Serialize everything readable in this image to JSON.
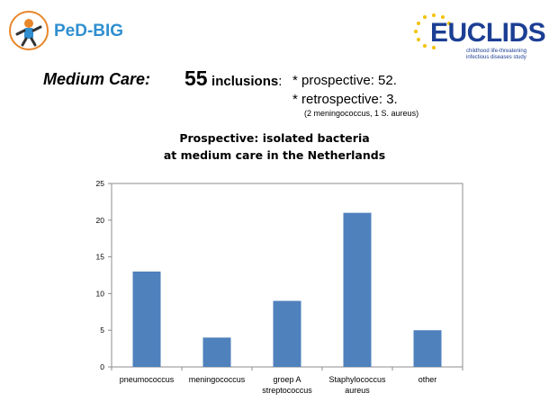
{
  "logos": {
    "pedbig_text": "PeD-BIG",
    "euclids_text": "EUCLIDS",
    "euclids_subtitle": "childhood life-threatening infectious diseases study"
  },
  "header": {
    "medium_care_label": "Medium Care:",
    "inclusions_count": "55",
    "inclusions_label": "inclusions",
    "prospective": "* prospective: 52.",
    "retrospective": "* retrospective: 3.",
    "retrospective_note": "(2 meningococcus, 1 S. aureus)"
  },
  "chart_data": {
    "type": "bar",
    "title": "Prospective: isolated bacteria at medium care in the Netherlands",
    "title_lines": [
      "Prospective: isolated bacteria",
      "at medium care in the Netherlands"
    ],
    "categories": [
      [
        "pneumococcus"
      ],
      [
        "meningococcus"
      ],
      [
        "groep A",
        "streptococcus"
      ],
      [
        "Staphylococcus",
        "aureus"
      ],
      [
        "other"
      ]
    ],
    "values": [
      13,
      4,
      9,
      21,
      5
    ],
    "ylim": [
      0,
      25
    ],
    "yticks": [
      0,
      5,
      10,
      15,
      20,
      25
    ],
    "xlabel": "",
    "ylabel": "",
    "grid": false,
    "legend": false,
    "bar_color": "#4f81bd"
  }
}
